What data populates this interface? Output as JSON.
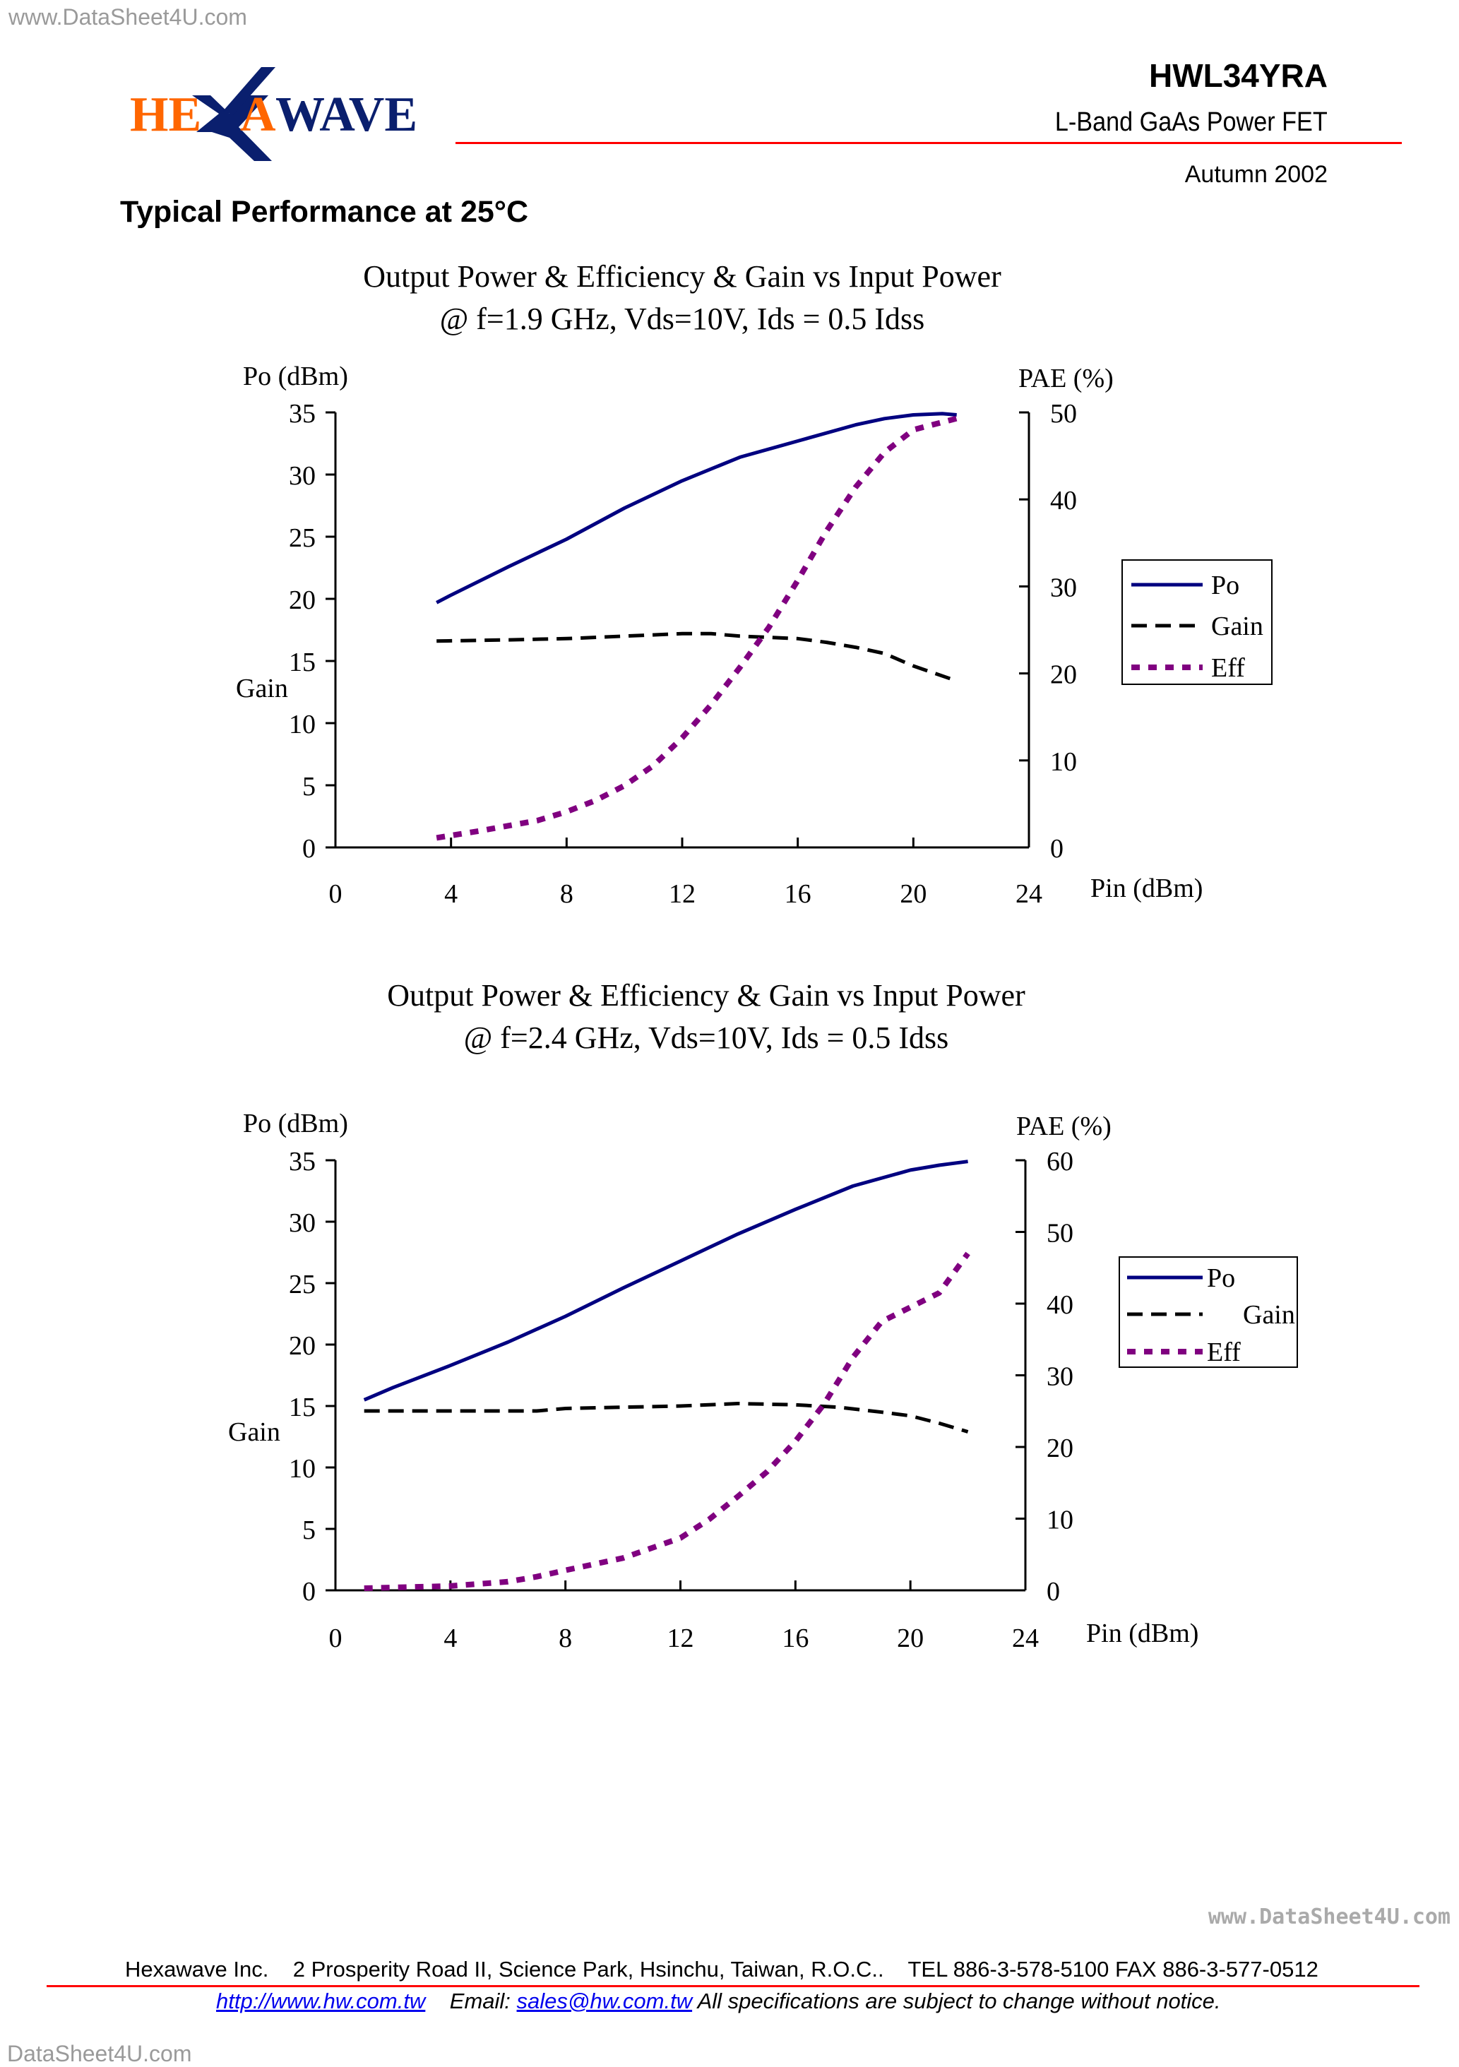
{
  "watermarks": {
    "top_left": "www.DataSheet4U.com",
    "right": "www.DataSheet4U.com",
    "bottom_left": "DataSheet4U.com"
  },
  "logo": {
    "text": "HEXAWAVE",
    "colors": {
      "orange": "#ff6600",
      "navy": "#0a1f6e"
    }
  },
  "header": {
    "part_number": "HWL34YRA",
    "subtitle": "L-Band GaAs Power FET",
    "date": "Autumn 2002",
    "rule_color": "#ff0000"
  },
  "section_title": "Typical Performance at 25°C",
  "chart_data": [
    {
      "type": "line",
      "title": "Output Power & Efficiency & Gain vs Input Power",
      "subtitle": "@ f=1.9 GHz, Vds=10V, Ids = 0.5 Idss",
      "xlabel": "Pin (dBm)",
      "ylabel_left": "Po (dBm)",
      "ylabel_left_secondary": "Gain",
      "ylabel_right": "PAE (%)",
      "xlim": [
        0,
        24
      ],
      "xticks": [
        "0",
        "4",
        "8",
        "12",
        "16",
        "20",
        "24"
      ],
      "ylim_left": [
        0,
        35
      ],
      "yticks_left": [
        "0",
        "5",
        "10",
        "15",
        "20",
        "25",
        "30",
        "35"
      ],
      "ylim_right": [
        0,
        50
      ],
      "yticks_right": [
        "0",
        "10",
        "20",
        "30",
        "40",
        "50"
      ],
      "grid": false,
      "legend": {
        "placement": "right",
        "entries": [
          "Po",
          "Gain",
          "Eff"
        ]
      },
      "series": [
        {
          "name": "Po",
          "axis": "left",
          "style": "solid",
          "color": "#000080",
          "x": [
            3.5,
            4,
            6,
            8,
            10,
            12,
            14,
            16,
            18,
            19,
            20,
            21,
            21.5
          ],
          "y": [
            19.7,
            20.3,
            22.6,
            24.8,
            27.3,
            29.5,
            31.4,
            32.7,
            34.0,
            34.5,
            34.8,
            34.9,
            34.8
          ]
        },
        {
          "name": "Gain",
          "axis": "left",
          "style": "dashed",
          "color": "#000000",
          "x": [
            3.5,
            6,
            8,
            10,
            12,
            13,
            14,
            16,
            17,
            18,
            19,
            20,
            21.5
          ],
          "y": [
            16.6,
            16.7,
            16.8,
            17.0,
            17.2,
            17.2,
            17.0,
            16.8,
            16.5,
            16.1,
            15.6,
            14.6,
            13.4
          ]
        },
        {
          "name": "Eff",
          "axis": "right",
          "style": "dotted",
          "color": "#800080",
          "x": [
            3.5,
            5,
            7,
            8,
            9,
            10,
            11,
            12,
            13,
            14,
            15,
            16,
            17,
            18,
            19,
            20,
            21.5
          ],
          "y": [
            1.1,
            1.9,
            3.1,
            4.1,
            5.4,
            7.1,
            9.4,
            12.6,
            16.4,
            20.7,
            25.3,
            30.7,
            36.4,
            41.4,
            45.4,
            48.0,
            49.3
          ]
        }
      ]
    },
    {
      "type": "line",
      "title": "Output Power & Efficiency & Gain vs Input Power",
      "subtitle": "@ f=2.4 GHz, Vds=10V, Ids = 0.5 Idss",
      "xlabel": "Pin (dBm)",
      "ylabel_left": "Po (dBm)",
      "ylabel_left_secondary": "Gain",
      "ylabel_right": "PAE (%)",
      "xlim": [
        0,
        24
      ],
      "xticks": [
        "0",
        "4",
        "8",
        "12",
        "16",
        "20",
        "24"
      ],
      "ylim_left": [
        0,
        35
      ],
      "yticks_left": [
        "0",
        "5",
        "10",
        "15",
        "20",
        "25",
        "30",
        "35"
      ],
      "ylim_right": [
        0,
        60
      ],
      "yticks_right": [
        "0",
        "10",
        "20",
        "30",
        "40",
        "50",
        "60"
      ],
      "grid": false,
      "legend": {
        "placement": "right",
        "entries": [
          "Po",
          "Gain",
          "Eff"
        ]
      },
      "series": [
        {
          "name": "Po",
          "axis": "left",
          "style": "solid",
          "color": "#000080",
          "x": [
            1,
            2,
            4,
            6,
            8,
            10,
            12,
            14,
            16,
            18,
            20,
            21,
            22
          ],
          "y": [
            15.5,
            16.5,
            18.3,
            20.2,
            22.3,
            24.6,
            26.8,
            29.0,
            31.0,
            32.9,
            34.2,
            34.6,
            34.9
          ]
        },
        {
          "name": "Gain",
          "axis": "left",
          "style": "dashed",
          "color": "#000000",
          "x": [
            1,
            4,
            7,
            8,
            10,
            12,
            14,
            16,
            17.5,
            19,
            20,
            21,
            22
          ],
          "y": [
            14.6,
            14.6,
            14.6,
            14.8,
            14.9,
            15.0,
            15.2,
            15.1,
            14.9,
            14.5,
            14.2,
            13.6,
            12.9
          ]
        },
        {
          "name": "Eff",
          "axis": "right",
          "style": "dotted",
          "color": "#800080",
          "x": [
            1,
            4,
            6,
            7,
            8,
            10,
            12,
            13,
            14,
            15,
            16,
            17,
            18,
            19,
            20,
            21,
            22
          ],
          "y": [
            0.3,
            0.6,
            1.2,
            1.9,
            2.8,
            4.5,
            7.3,
            9.9,
            13.1,
            16.5,
            20.8,
            26.0,
            32.5,
            37.5,
            39.5,
            41.5,
            47.0
          ]
        }
      ]
    }
  ],
  "footer": {
    "company": "Hexawave Inc.",
    "address": "2 Prosperity Road II, Science Park, Hsinchu, Taiwan, R.O.C..",
    "contact": "TEL 886-3-578-5100 FAX 886-3-577-0512",
    "url": "http://www.hw.com.tw",
    "email_label": "Email:",
    "email": "sales@hw.com.tw",
    "disclaimer": "All specifications are subject to change without notice."
  }
}
